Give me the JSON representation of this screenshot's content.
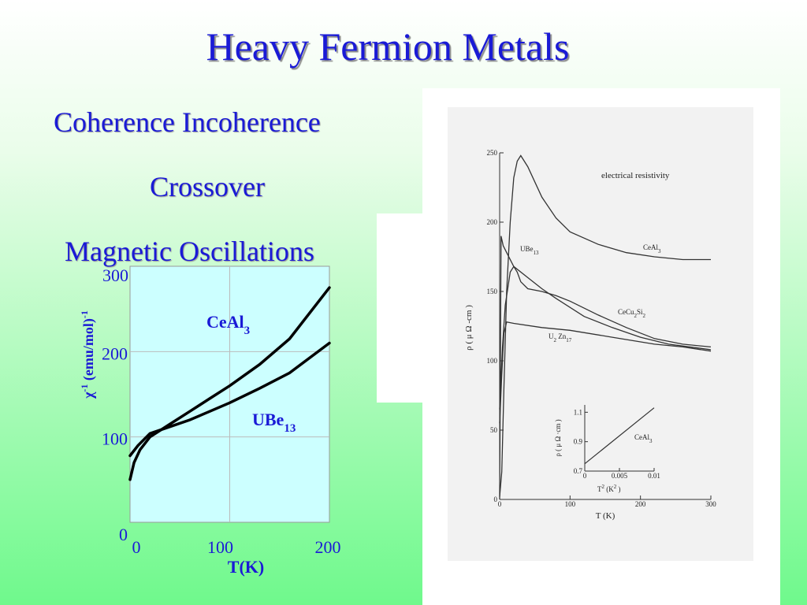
{
  "slide": {
    "title": "Heavy Fermion Metals",
    "subtitle_lines": [
      "Coherence Incoherence",
      "Crossover",
      "Magnetic Oscillations"
    ]
  },
  "colors": {
    "title": "#1a1ad6",
    "plot_bg": "#ccffff",
    "curve": "#000000"
  },
  "chart_data": [
    {
      "type": "line",
      "title": "",
      "xlabel": "T(K)",
      "ylabel_parts": [
        "χ",
        "-1",
        " (emu/mol)",
        "-1"
      ],
      "xlim": [
        0,
        200
      ],
      "ylim": [
        0,
        300
      ],
      "xticks": [
        0,
        100,
        200
      ],
      "yticks": [
        0,
        100,
        200,
        300
      ],
      "grid": true,
      "series": [
        {
          "name_parts": [
            "CeAl",
            "3"
          ],
          "points": [
            [
              0,
              50
            ],
            [
              4,
              70
            ],
            [
              10,
              85
            ],
            [
              20,
              100
            ],
            [
              40,
              115
            ],
            [
              60,
              130
            ],
            [
              80,
              145
            ],
            [
              100,
              160
            ],
            [
              130,
              185
            ],
            [
              160,
              215
            ],
            [
              200,
              275
            ]
          ]
        },
        {
          "name_parts": [
            "UBe",
            "13"
          ],
          "points": [
            [
              0,
              78
            ],
            [
              8,
              90
            ],
            [
              20,
              104
            ],
            [
              40,
              112
            ],
            [
              60,
              120
            ],
            [
              80,
              130
            ],
            [
              100,
              140
            ],
            [
              130,
              157
            ],
            [
              160,
              175
            ],
            [
              200,
              210
            ]
          ]
        }
      ]
    },
    {
      "type": "line",
      "title": "electrical resistivity",
      "xlabel": "T (K)",
      "ylabel_parts": [
        "ρ ( μ Ω -cm )"
      ],
      "xlim": [
        0,
        300
      ],
      "ylim": [
        0,
        250
      ],
      "xticks": [
        0,
        100,
        200,
        300
      ],
      "yticks": [
        0,
        50,
        100,
        150,
        200,
        250
      ],
      "series": [
        {
          "name_parts": [
            "CeAl",
            "3"
          ],
          "points": [
            [
              0,
              2
            ],
            [
              3,
              20
            ],
            [
              6,
              80
            ],
            [
              10,
              150
            ],
            [
              15,
              200
            ],
            [
              20,
              232
            ],
            [
              25,
              244
            ],
            [
              30,
              248
            ],
            [
              40,
              240
            ],
            [
              60,
              218
            ],
            [
              80,
              203
            ],
            [
              100,
              193
            ],
            [
              140,
              184
            ],
            [
              180,
              178
            ],
            [
              220,
              175
            ],
            [
              260,
              173
            ],
            [
              300,
              173
            ]
          ]
        },
        {
          "name_parts": [
            "UBe",
            "13"
          ],
          "points": [
            [
              0,
              0
            ],
            [
              2,
              190
            ],
            [
              5,
              183
            ],
            [
              10,
              178
            ],
            [
              20,
              168
            ],
            [
              40,
              160
            ],
            [
              60,
              152
            ],
            [
              80,
              145
            ],
            [
              120,
              132
            ],
            [
              160,
              124
            ],
            [
              200,
              117
            ],
            [
              240,
              112
            ],
            [
              300,
              108
            ]
          ]
        },
        {
          "name_parts": [
            "CeCu",
            "2",
            "Si",
            "2"
          ],
          "points": [
            [
              0,
              65
            ],
            [
              4,
              110
            ],
            [
              8,
              140
            ],
            [
              15,
              164
            ],
            [
              20,
              168
            ],
            [
              25,
              164
            ],
            [
              30,
              157
            ],
            [
              40,
              152
            ],
            [
              60,
              150
            ],
            [
              80,
              147
            ],
            [
              100,
              143
            ],
            [
              140,
              133
            ],
            [
              180,
              124
            ],
            [
              220,
              116
            ],
            [
              260,
              112
            ],
            [
              300,
              110
            ]
          ]
        },
        {
          "name_parts": [
            "U",
            "2",
            " Zn",
            "17"
          ],
          "points": [
            [
              0,
              55
            ],
            [
              3,
              90
            ],
            [
              6,
              120
            ],
            [
              10,
              128
            ],
            [
              20,
              127
            ],
            [
              60,
              124
            ],
            [
              100,
              122
            ],
            [
              160,
              117
            ],
            [
              220,
              112
            ],
            [
              260,
              110
            ],
            [
              300,
              107
            ]
          ]
        }
      ],
      "inset": {
        "xlabel_parts": [
          "T",
          "2",
          "  (K",
          "2",
          " )"
        ],
        "ylabel_parts": [
          "ρ ( μ Ω ·cm )"
        ],
        "xlim": [
          0,
          0.01
        ],
        "ylim": [
          0.7,
          1.15
        ],
        "xticks": [
          0,
          0.005,
          0.01
        ],
        "xtick_labels": [
          "0",
          "0.005",
          "0.01"
        ],
        "yticks": [
          0.7,
          0.9,
          1.1
        ],
        "ytick_labels": [
          "0.7",
          "0.9",
          "1.1"
        ],
        "series": [
          {
            "name_parts": [
              "CeAl",
              "3"
            ],
            "points": [
              [
                0,
                0.75
              ],
              [
                0.01,
                1.13
              ]
            ]
          }
        ]
      }
    }
  ]
}
